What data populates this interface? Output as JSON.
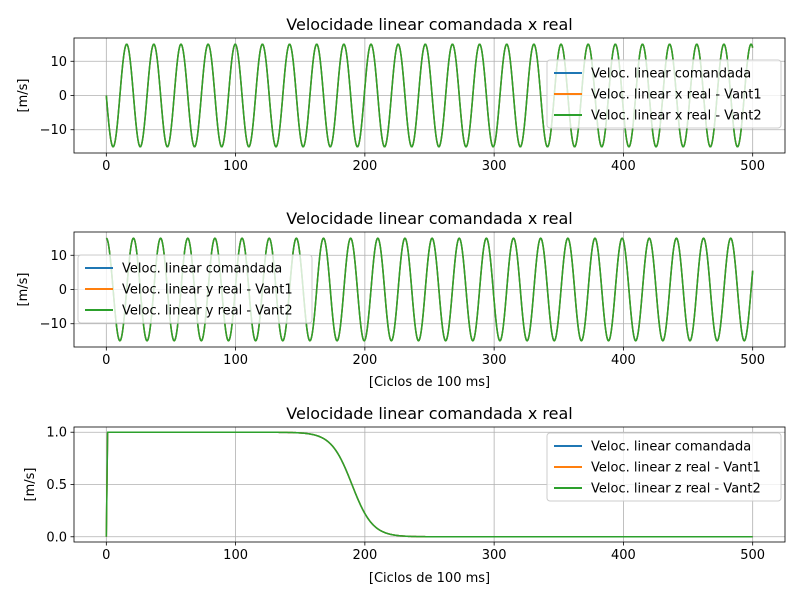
{
  "chart_data": [
    {
      "type": "line",
      "title": "Velocidade linear comandada x real",
      "xlabel": "",
      "ylabel": "[m/s]",
      "xlim": [
        -25,
        525
      ],
      "ylim": [
        -16.8,
        16.8
      ],
      "xticks": [
        0,
        100,
        200,
        300,
        400,
        500
      ],
      "xtick_labels": [
        "0",
        "100",
        "200",
        "300",
        "400",
        "500"
      ],
      "yticks": [
        10,
        0,
        -10
      ],
      "ytick_labels": [
        "10",
        "0",
        "−10"
      ],
      "grid": true,
      "legend_position": "center-right",
      "series_function": {
        "kind": "sine",
        "amplitude": 15,
        "period": 21,
        "phase_sign": -1,
        "x_start": 0,
        "x_end": 500
      },
      "series": [
        {
          "name": "Veloc. linear comandada",
          "color": "#1f77b4"
        },
        {
          "name": "Veloc. linear x real - Vant1",
          "color": "#ff7f0e"
        },
        {
          "name": "Veloc. linear x real - Vant2",
          "color": "#2ca02c"
        }
      ]
    },
    {
      "type": "line",
      "title": "Velocidade linear comandada x real",
      "xlabel": "[Ciclos de 100 ms]",
      "ylabel": "[m/s]",
      "xlim": [
        -25,
        525
      ],
      "ylim": [
        -16.8,
        16.8
      ],
      "xticks": [
        0,
        100,
        200,
        300,
        400,
        500
      ],
      "xtick_labels": [
        "0",
        "100",
        "200",
        "300",
        "400",
        "500"
      ],
      "yticks": [
        10,
        0,
        -10
      ],
      "ytick_labels": [
        "10",
        "0",
        "−10"
      ],
      "grid": true,
      "legend_position": "center-left",
      "series_function": {
        "kind": "cosine",
        "amplitude": 15,
        "period": 21,
        "x_start": 0,
        "x_end": 500
      },
      "series": [
        {
          "name": "Veloc. linear comandada",
          "color": "#1f77b4"
        },
        {
          "name": "Veloc. linear y real - Vant1",
          "color": "#ff7f0e"
        },
        {
          "name": "Veloc. linear y real - Vant2",
          "color": "#2ca02c"
        }
      ]
    },
    {
      "type": "line",
      "title": "Velocidade linear comandada x real",
      "xlabel": "[Ciclos de 100 ms]",
      "ylabel": "[m/s]",
      "xlim": [
        -25,
        525
      ],
      "ylim": [
        -0.05,
        1.05
      ],
      "xticks": [
        0,
        100,
        200,
        300,
        400,
        500
      ],
      "xtick_labels": [
        "0",
        "100",
        "200",
        "300",
        "400",
        "500"
      ],
      "yticks": [
        1.0,
        0.5,
        0.0
      ],
      "ytick_labels": [
        "1.0",
        "0.5",
        "0.0"
      ],
      "grid": true,
      "legend_position": "upper right",
      "series_function": {
        "kind": "sigmoid_drop",
        "x_start": 0,
        "x_end": 500,
        "rise_end": 1,
        "level": 1,
        "midpoint": 190,
        "width": 8
      },
      "series": [
        {
          "name": "Veloc. linear comandada",
          "color": "#1f77b4"
        },
        {
          "name": "Veloc. linear z real - Vant1",
          "color": "#ff7f0e"
        },
        {
          "name": "Veloc. linear z real - Vant2",
          "color": "#2ca02c"
        }
      ]
    }
  ]
}
